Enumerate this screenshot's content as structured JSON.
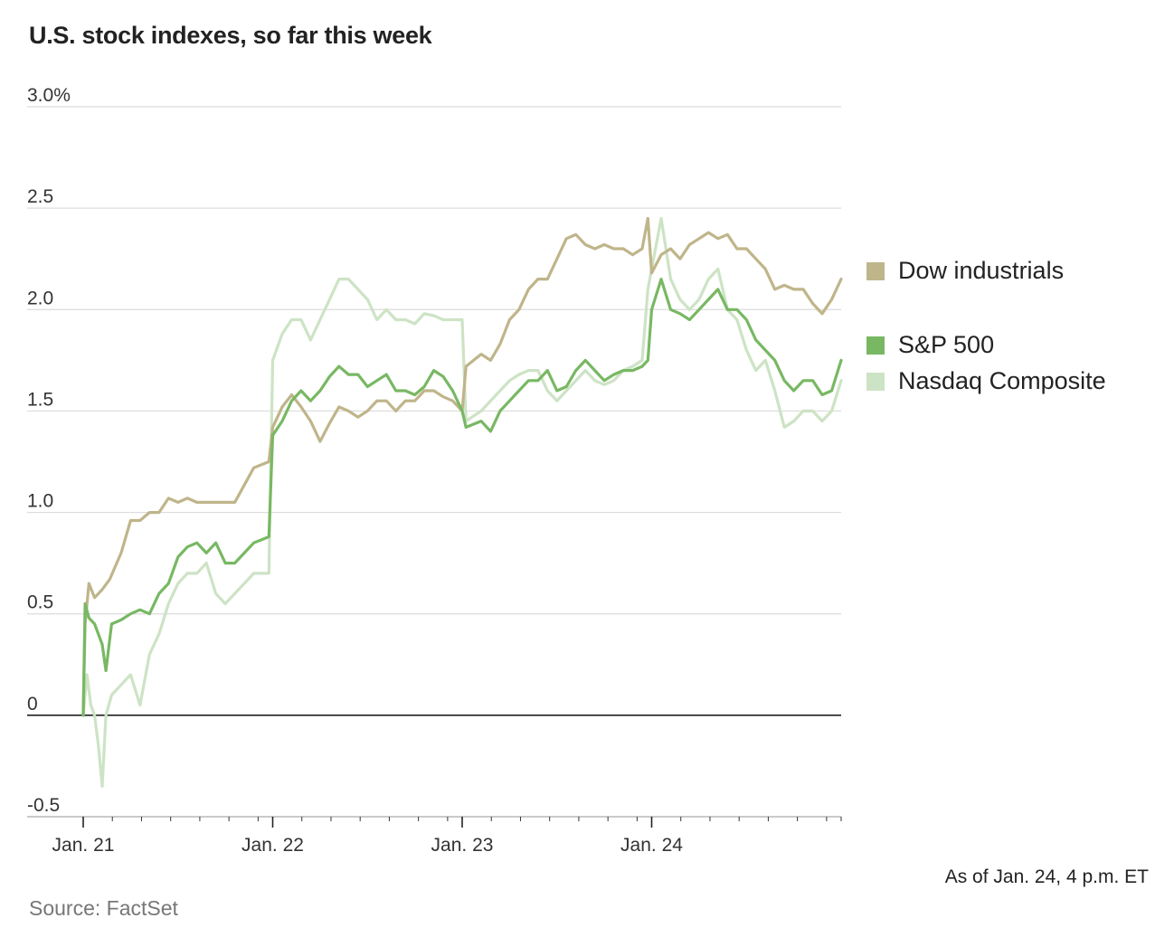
{
  "chart_data": {
    "type": "line",
    "title": "U.S. stock indexes, so far this week",
    "xlabel": "",
    "ylabel": "",
    "ylim": [
      -0.5,
      3.0
    ],
    "y_ticks": [
      {
        "value": 3.0,
        "label": "3.0%"
      },
      {
        "value": 2.5,
        "label": "2.5"
      },
      {
        "value": 2.0,
        "label": "2.0"
      },
      {
        "value": 1.5,
        "label": "1.5"
      },
      {
        "value": 1.0,
        "label": "1.0"
      },
      {
        "value": 0.5,
        "label": "0.5"
      },
      {
        "value": 0,
        "label": "0"
      },
      {
        "value": -0.5,
        "label": "-0.5"
      }
    ],
    "x_ticks": [
      {
        "value": 0,
        "label": "Jan. 21"
      },
      {
        "value": 1,
        "label": "Jan. 22"
      },
      {
        "value": 2,
        "label": "Jan. 23"
      },
      {
        "value": 3,
        "label": "Jan. 24"
      }
    ],
    "xlim": [
      0,
      4
    ],
    "series": [
      {
        "name": "Dow industrials",
        "color": "#bfb58a",
        "points": [
          [
            0.0,
            0.0
          ],
          [
            0.01,
            0.45
          ],
          [
            0.03,
            0.65
          ],
          [
            0.06,
            0.58
          ],
          [
            0.1,
            0.62
          ],
          [
            0.14,
            0.67
          ],
          [
            0.2,
            0.8
          ],
          [
            0.25,
            0.96
          ],
          [
            0.3,
            0.96
          ],
          [
            0.35,
            1.0
          ],
          [
            0.4,
            1.0
          ],
          [
            0.45,
            1.07
          ],
          [
            0.5,
            1.05
          ],
          [
            0.55,
            1.07
          ],
          [
            0.6,
            1.05
          ],
          [
            0.65,
            1.05
          ],
          [
            0.7,
            1.05
          ],
          [
            0.8,
            1.05
          ],
          [
            0.9,
            1.22
          ],
          [
            0.98,
            1.25
          ],
          [
            1.0,
            1.42
          ],
          [
            1.05,
            1.52
          ],
          [
            1.1,
            1.58
          ],
          [
            1.15,
            1.52
          ],
          [
            1.2,
            1.45
          ],
          [
            1.25,
            1.35
          ],
          [
            1.3,
            1.44
          ],
          [
            1.35,
            1.52
          ],
          [
            1.4,
            1.5
          ],
          [
            1.45,
            1.47
          ],
          [
            1.5,
            1.5
          ],
          [
            1.55,
            1.55
          ],
          [
            1.6,
            1.55
          ],
          [
            1.65,
            1.5
          ],
          [
            1.7,
            1.55
          ],
          [
            1.75,
            1.55
          ],
          [
            1.8,
            1.6
          ],
          [
            1.85,
            1.6
          ],
          [
            1.9,
            1.57
          ],
          [
            1.95,
            1.55
          ],
          [
            2.0,
            1.5
          ],
          [
            2.02,
            1.72
          ],
          [
            2.1,
            1.78
          ],
          [
            2.15,
            1.75
          ],
          [
            2.2,
            1.83
          ],
          [
            2.25,
            1.95
          ],
          [
            2.3,
            2.0
          ],
          [
            2.35,
            2.1
          ],
          [
            2.4,
            2.15
          ],
          [
            2.45,
            2.15
          ],
          [
            2.5,
            2.25
          ],
          [
            2.55,
            2.35
          ],
          [
            2.6,
            2.37
          ],
          [
            2.65,
            2.32
          ],
          [
            2.7,
            2.3
          ],
          [
            2.75,
            2.32
          ],
          [
            2.8,
            2.3
          ],
          [
            2.85,
            2.3
          ],
          [
            2.9,
            2.27
          ],
          [
            2.95,
            2.3
          ],
          [
            2.98,
            2.45
          ],
          [
            3.0,
            2.18
          ],
          [
            3.05,
            2.27
          ],
          [
            3.1,
            2.3
          ],
          [
            3.15,
            2.25
          ],
          [
            3.2,
            2.32
          ],
          [
            3.25,
            2.35
          ],
          [
            3.3,
            2.38
          ],
          [
            3.35,
            2.35
          ],
          [
            3.4,
            2.37
          ],
          [
            3.45,
            2.3
          ],
          [
            3.5,
            2.3
          ],
          [
            3.55,
            2.25
          ],
          [
            3.6,
            2.2
          ],
          [
            3.65,
            2.1
          ],
          [
            3.7,
            2.12
          ],
          [
            3.75,
            2.1
          ],
          [
            3.8,
            2.1
          ],
          [
            3.85,
            2.03
          ],
          [
            3.9,
            1.98
          ],
          [
            3.95,
            2.05
          ],
          [
            4.0,
            2.15
          ]
        ]
      },
      {
        "name": "S&P 500",
        "color": "#78b863",
        "points": [
          [
            0.0,
            0.0
          ],
          [
            0.01,
            0.55
          ],
          [
            0.03,
            0.48
          ],
          [
            0.06,
            0.45
          ],
          [
            0.1,
            0.35
          ],
          [
            0.12,
            0.22
          ],
          [
            0.15,
            0.45
          ],
          [
            0.2,
            0.47
          ],
          [
            0.25,
            0.5
          ],
          [
            0.3,
            0.52
          ],
          [
            0.35,
            0.5
          ],
          [
            0.4,
            0.6
          ],
          [
            0.45,
            0.65
          ],
          [
            0.5,
            0.78
          ],
          [
            0.55,
            0.83
          ],
          [
            0.6,
            0.85
          ],
          [
            0.65,
            0.8
          ],
          [
            0.7,
            0.85
          ],
          [
            0.75,
            0.75
          ],
          [
            0.8,
            0.75
          ],
          [
            0.85,
            0.8
          ],
          [
            0.9,
            0.85
          ],
          [
            0.98,
            0.88
          ],
          [
            1.0,
            1.38
          ],
          [
            1.05,
            1.45
          ],
          [
            1.1,
            1.55
          ],
          [
            1.15,
            1.6
          ],
          [
            1.2,
            1.55
          ],
          [
            1.25,
            1.6
          ],
          [
            1.3,
            1.67
          ],
          [
            1.35,
            1.72
          ],
          [
            1.4,
            1.68
          ],
          [
            1.45,
            1.68
          ],
          [
            1.5,
            1.62
          ],
          [
            1.55,
            1.65
          ],
          [
            1.6,
            1.68
          ],
          [
            1.65,
            1.6
          ],
          [
            1.7,
            1.6
          ],
          [
            1.75,
            1.58
          ],
          [
            1.8,
            1.62
          ],
          [
            1.85,
            1.7
          ],
          [
            1.9,
            1.67
          ],
          [
            1.95,
            1.6
          ],
          [
            2.0,
            1.5
          ],
          [
            2.02,
            1.42
          ],
          [
            2.1,
            1.45
          ],
          [
            2.15,
            1.4
          ],
          [
            2.2,
            1.5
          ],
          [
            2.25,
            1.55
          ],
          [
            2.3,
            1.6
          ],
          [
            2.35,
            1.65
          ],
          [
            2.4,
            1.65
          ],
          [
            2.45,
            1.7
          ],
          [
            2.5,
            1.6
          ],
          [
            2.55,
            1.62
          ],
          [
            2.6,
            1.7
          ],
          [
            2.65,
            1.75
          ],
          [
            2.7,
            1.7
          ],
          [
            2.75,
            1.65
          ],
          [
            2.8,
            1.68
          ],
          [
            2.85,
            1.7
          ],
          [
            2.9,
            1.7
          ],
          [
            2.95,
            1.72
          ],
          [
            2.98,
            1.75
          ],
          [
            3.0,
            2.0
          ],
          [
            3.05,
            2.15
          ],
          [
            3.1,
            2.0
          ],
          [
            3.15,
            1.98
          ],
          [
            3.2,
            1.95
          ],
          [
            3.25,
            2.0
          ],
          [
            3.3,
            2.05
          ],
          [
            3.35,
            2.1
          ],
          [
            3.4,
            2.0
          ],
          [
            3.45,
            2.0
          ],
          [
            3.5,
            1.95
          ],
          [
            3.55,
            1.85
          ],
          [
            3.6,
            1.8
          ],
          [
            3.65,
            1.75
          ],
          [
            3.7,
            1.65
          ],
          [
            3.75,
            1.6
          ],
          [
            3.8,
            1.65
          ],
          [
            3.85,
            1.65
          ],
          [
            3.9,
            1.58
          ],
          [
            3.95,
            1.6
          ],
          [
            4.0,
            1.75
          ]
        ]
      },
      {
        "name": "Nasdaq Composite",
        "color": "#cde3c5",
        "points": [
          [
            0.0,
            0.0
          ],
          [
            0.02,
            0.2
          ],
          [
            0.04,
            0.05
          ],
          [
            0.06,
            0.0
          ],
          [
            0.08,
            -0.15
          ],
          [
            0.1,
            -0.35
          ],
          [
            0.12,
            0.0
          ],
          [
            0.15,
            0.1
          ],
          [
            0.2,
            0.15
          ],
          [
            0.25,
            0.2
          ],
          [
            0.3,
            0.05
          ],
          [
            0.35,
            0.3
          ],
          [
            0.4,
            0.4
          ],
          [
            0.45,
            0.55
          ],
          [
            0.5,
            0.65
          ],
          [
            0.55,
            0.7
          ],
          [
            0.6,
            0.7
          ],
          [
            0.65,
            0.75
          ],
          [
            0.7,
            0.6
          ],
          [
            0.75,
            0.55
          ],
          [
            0.8,
            0.6
          ],
          [
            0.85,
            0.65
          ],
          [
            0.9,
            0.7
          ],
          [
            0.98,
            0.7
          ],
          [
            1.0,
            1.75
          ],
          [
            1.05,
            1.88
          ],
          [
            1.1,
            1.95
          ],
          [
            1.15,
            1.95
          ],
          [
            1.2,
            1.85
          ],
          [
            1.25,
            1.95
          ],
          [
            1.3,
            2.05
          ],
          [
            1.35,
            2.15
          ],
          [
            1.4,
            2.15
          ],
          [
            1.45,
            2.1
          ],
          [
            1.5,
            2.05
          ],
          [
            1.55,
            1.95
          ],
          [
            1.6,
            2.0
          ],
          [
            1.65,
            1.95
          ],
          [
            1.7,
            1.95
          ],
          [
            1.75,
            1.93
          ],
          [
            1.8,
            1.98
          ],
          [
            1.85,
            1.97
          ],
          [
            1.9,
            1.95
          ],
          [
            1.95,
            1.95
          ],
          [
            2.0,
            1.95
          ],
          [
            2.02,
            1.45
          ],
          [
            2.1,
            1.5
          ],
          [
            2.15,
            1.55
          ],
          [
            2.2,
            1.6
          ],
          [
            2.25,
            1.65
          ],
          [
            2.3,
            1.68
          ],
          [
            2.35,
            1.7
          ],
          [
            2.4,
            1.7
          ],
          [
            2.45,
            1.6
          ],
          [
            2.5,
            1.55
          ],
          [
            2.55,
            1.6
          ],
          [
            2.6,
            1.65
          ],
          [
            2.65,
            1.7
          ],
          [
            2.7,
            1.65
          ],
          [
            2.75,
            1.63
          ],
          [
            2.8,
            1.65
          ],
          [
            2.85,
            1.7
          ],
          [
            2.9,
            1.72
          ],
          [
            2.95,
            1.75
          ],
          [
            2.98,
            2.1
          ],
          [
            3.0,
            2.2
          ],
          [
            3.05,
            2.45
          ],
          [
            3.1,
            2.15
          ],
          [
            3.15,
            2.05
          ],
          [
            3.2,
            2.0
          ],
          [
            3.25,
            2.05
          ],
          [
            3.3,
            2.15
          ],
          [
            3.35,
            2.2
          ],
          [
            3.4,
            2.0
          ],
          [
            3.45,
            1.95
          ],
          [
            3.5,
            1.8
          ],
          [
            3.55,
            1.7
          ],
          [
            3.6,
            1.75
          ],
          [
            3.65,
            1.6
          ],
          [
            3.7,
            1.42
          ],
          [
            3.75,
            1.45
          ],
          [
            3.8,
            1.5
          ],
          [
            3.85,
            1.5
          ],
          [
            3.9,
            1.45
          ],
          [
            3.95,
            1.5
          ],
          [
            4.0,
            1.65
          ]
        ]
      }
    ],
    "legend": [
      "Dow industrials",
      "S&P 500",
      "Nasdaq Composite"
    ],
    "legend_placement": "right",
    "annotation": "As of Jan. 24, 4 p.m. ET",
    "source": "Source: FactSet"
  }
}
